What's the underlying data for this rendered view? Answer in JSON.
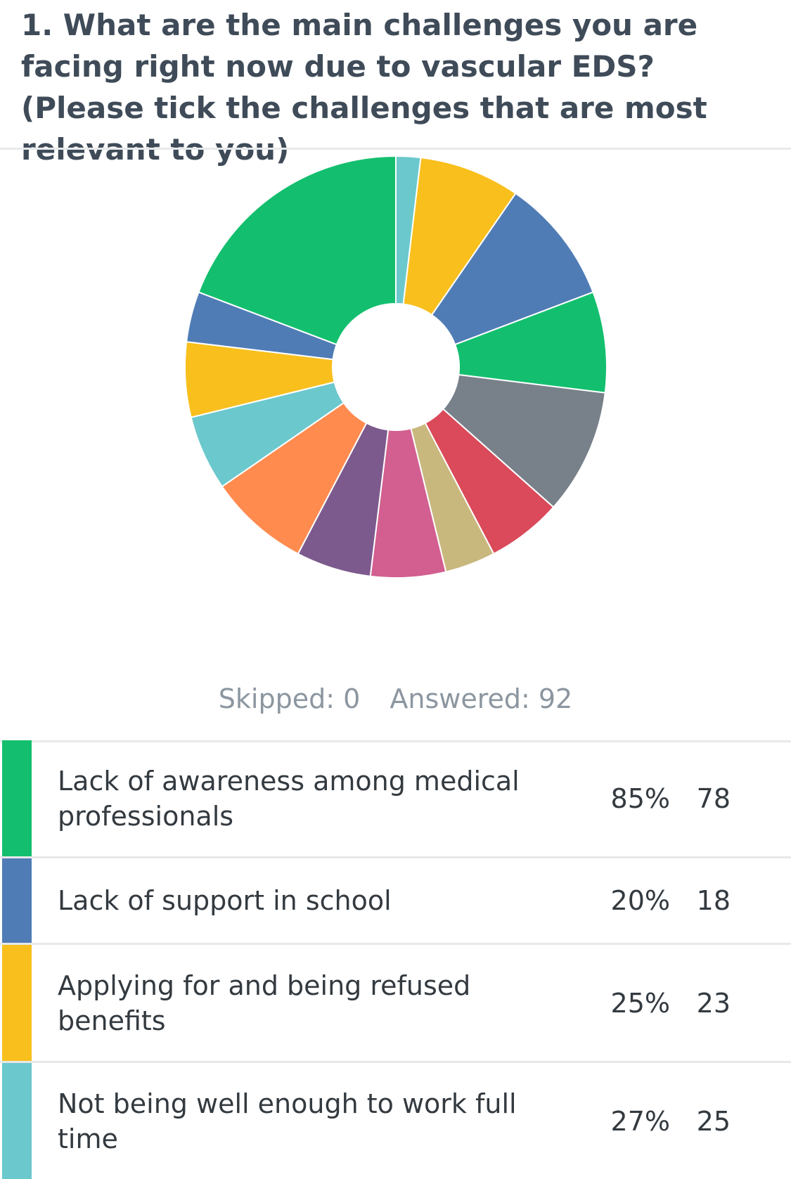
{
  "question": "1. What are the main challenges you are facing right now due to vascular EDS?(Please tick the challenges that are most relevant to you)",
  "stats": {
    "skipped": "Skipped: 0",
    "answered": "Answered: 92"
  },
  "colors": {
    "green": "#13bf6e",
    "blue": "#507cb6",
    "yellow": "#f8bf1d",
    "teal": "#6bc8cd",
    "orange": "#ff8b4f",
    "purple": "#7c5a8d",
    "pink": "#d25f90",
    "tan": "#c9b87e",
    "red": "#da4a5a",
    "gray": "#78808a"
  },
  "rows": [
    {
      "label": "Lack of awareness among medical professionals",
      "percent": "85%",
      "count": "78",
      "color": "#13bf6e"
    },
    {
      "label": "Lack of support in school",
      "percent": "20%",
      "count": "18",
      "color": "#507cb6"
    },
    {
      "label": "Applying for and being refused benefits",
      "percent": "25%",
      "count": "23",
      "color": "#f8bf1d"
    },
    {
      "label": "Not being well enough to work full time",
      "percent": "27%",
      "count": "25",
      "color": "#6bc8cd"
    }
  ],
  "chart_data": {
    "type": "pie",
    "donut": true,
    "categories": [
      "Lack of awareness among medical professionals",
      "Lack of support in school",
      "Applying for and being refused benefits",
      "Not being well enough to work full time"
    ],
    "slices": [
      {
        "category": "",
        "value": 2.0,
        "color": "#6bc8cd"
      },
      {
        "category": "",
        "value": 8.2,
        "color": "#f8bf1d"
      },
      {
        "category": "",
        "value": 10.2,
        "color": "#507cb6"
      },
      {
        "category": "",
        "value": 8.2,
        "color": "#13bf6e"
      },
      {
        "category": "",
        "value": 10.2,
        "color": "#78808a"
      },
      {
        "category": "",
        "value": 6.1,
        "color": "#da4a5a"
      },
      {
        "category": "",
        "value": 4.1,
        "color": "#c9b87e"
      },
      {
        "category": "",
        "value": 6.1,
        "color": "#d25f90"
      },
      {
        "category": "",
        "value": 6.1,
        "color": "#7c5a8d"
      },
      {
        "category": "",
        "value": 8.2,
        "color": "#ff8b4f"
      },
      {
        "category": "Not being well enough to work full time",
        "value": 6.1,
        "color": "#6bc8cd"
      },
      {
        "category": "Applying for and being refused benefits",
        "value": 6.1,
        "color": "#f8bf1d"
      },
      {
        "category": "Lack of support in school",
        "value": 4.1,
        "color": "#507cb6"
      },
      {
        "category": "Lack of awareness among medical professionals",
        "value": 20.4,
        "color": "#13bf6e"
      }
    ]
  }
}
